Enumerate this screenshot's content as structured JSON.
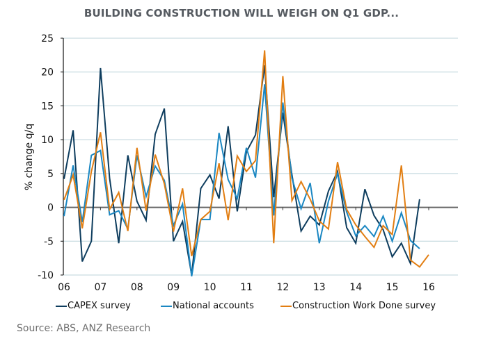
{
  "title": "BUILDING CONSTRUCTION WILL WEIGH ON Q1 GDP...",
  "source": "Source: ABS, ANZ Research",
  "chart_data": {
    "type": "line",
    "title": "BUILDING CONSTRUCTION WILL WEIGH ON Q1 GDP...",
    "xlabel": "",
    "ylabel": "% change q/q",
    "ylim": [
      -10,
      25
    ],
    "yticks": [
      -10,
      -5,
      0,
      5,
      10,
      15,
      20,
      25
    ],
    "ytick_labels": [
      "-10",
      "-5",
      "0",
      "5",
      "10",
      "15",
      "20",
      "25"
    ],
    "xtick_labels": [
      "06",
      "07",
      "08",
      "09",
      "10",
      "11",
      "12",
      "13",
      "14",
      "15",
      "16"
    ],
    "x_frequency": "quarterly",
    "x_start": "Q1 2006",
    "x_end": "Q1 2016",
    "grid": true,
    "legend_position": "bottom",
    "series": [
      {
        "name": "CAPEX survey",
        "color": "#0e3d5e",
        "values": [
          4.2,
          11.4,
          -8.0,
          -5.0,
          20.6,
          4.3,
          -5.3,
          7.7,
          0.9,
          -1.9,
          10.8,
          14.6,
          -5.0,
          -2.1,
          -10.0,
          2.8,
          4.8,
          1.3,
          12.0,
          -0.6,
          8.2,
          10.7,
          21.0,
          1.5,
          14.0,
          4.8,
          -3.5,
          -1.3,
          -2.6,
          2.4,
          5.3,
          -3.0,
          -5.3,
          2.7,
          -1.2,
          -3.3,
          -7.3,
          -5.3,
          -8.3,
          1.2
        ]
      },
      {
        "name": "National accounts",
        "color": "#1b87c2",
        "values": [
          -1.3,
          6.2,
          -2.2,
          7.7,
          8.4,
          -1.1,
          -0.5,
          -3.2,
          7.7,
          1.6,
          6.1,
          4.0,
          -2.7,
          0.5,
          -10.2,
          -1.8,
          -1.8,
          11.0,
          4.1,
          1.3,
          8.8,
          4.4,
          18.2,
          -1.2,
          15.5,
          4.3,
          -0.2,
          3.6,
          -5.3,
          0.9,
          5.0,
          -0.7,
          -4.2,
          -2.7,
          -4.3,
          -1.3,
          -5.0,
          -0.8,
          -4.9,
          -6.1
        ]
      },
      {
        "name": "Construction Work Done survey",
        "color": "#e27e12",
        "values": [
          1.1,
          4.8,
          -3.1,
          5.3,
          11.1,
          -0.3,
          2.2,
          -3.5,
          8.8,
          -0.5,
          7.8,
          3.5,
          -3.6,
          2.8,
          -7.2,
          -1.8,
          -0.6,
          6.5,
          -1.9,
          7.6,
          5.3,
          6.9,
          23.2,
          -5.3,
          19.4,
          1.0,
          3.8,
          1.2,
          -2.0,
          -3.2,
          6.7,
          -0.3,
          -2.6,
          -4.3,
          -5.9,
          -2.7,
          -4.0,
          6.2,
          -7.8,
          -8.8,
          -7.0
        ]
      }
    ]
  }
}
